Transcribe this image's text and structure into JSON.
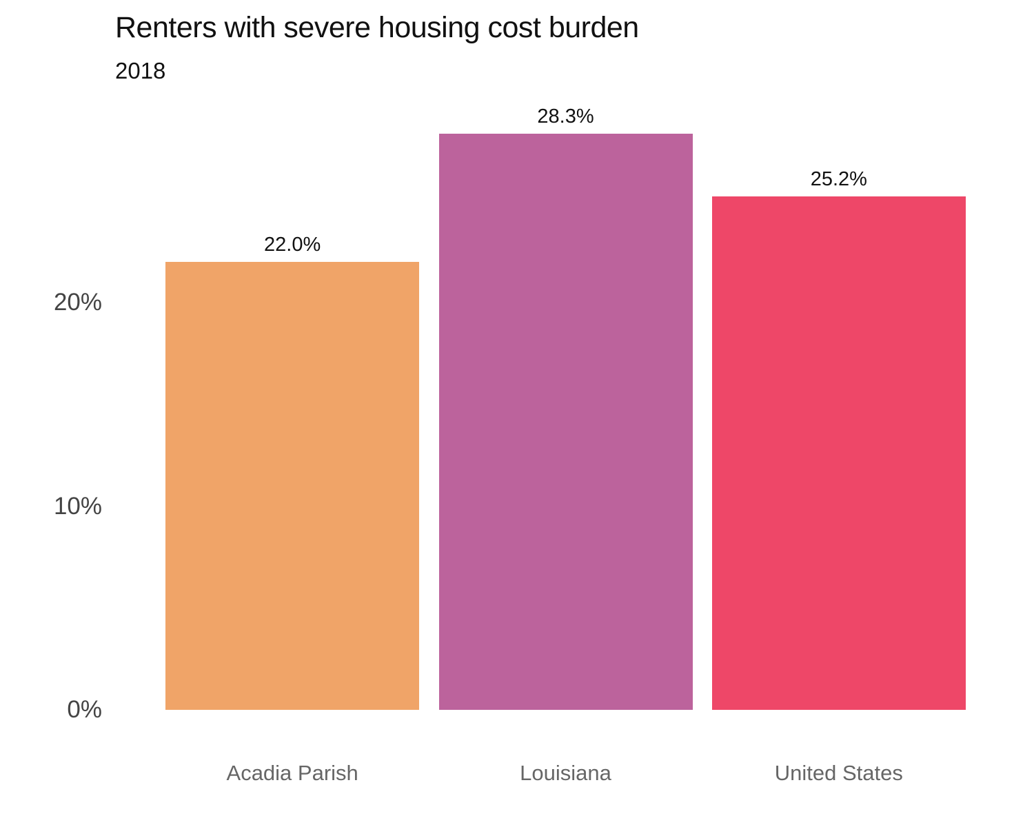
{
  "chart_data": {
    "type": "bar",
    "title": "Renters with severe housing cost burden",
    "subtitle": "2018",
    "categories": [
      "Acadia Parish",
      "Louisiana",
      "United States"
    ],
    "values": [
      22.0,
      28.3,
      25.2
    ],
    "value_labels": [
      "22.0%",
      "28.3%",
      "25.2%"
    ],
    "bar_colors": [
      "#F0A468",
      "#BC639C",
      "#EE4768"
    ],
    "xlabel": "",
    "ylabel": "",
    "ylim": [
      0,
      30
    ],
    "yticks": [
      {
        "value": 0,
        "label": "0%"
      },
      {
        "value": 10,
        "label": "10%"
      },
      {
        "value": 20,
        "label": "20%"
      }
    ],
    "grid": false,
    "legend": null,
    "colors": {
      "title": "#111111",
      "tick_labels": "#444444",
      "category_labels": "#666666",
      "background": "#ffffff"
    }
  }
}
